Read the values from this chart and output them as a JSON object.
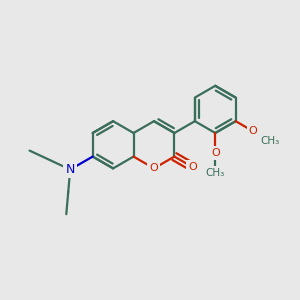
{
  "bg_color": "#e8e8e8",
  "bond_color": "#3a6e5a",
  "oxygen_color": "#cc2200",
  "nitrogen_color": "#0000cc",
  "bond_width": 1.6,
  "label_color_O": "#cc2200",
  "label_color_N": "#0000cc",
  "label_color_C": "#3a6e5a",
  "methoxy_label": "O",
  "methyl_label": "CH₃"
}
